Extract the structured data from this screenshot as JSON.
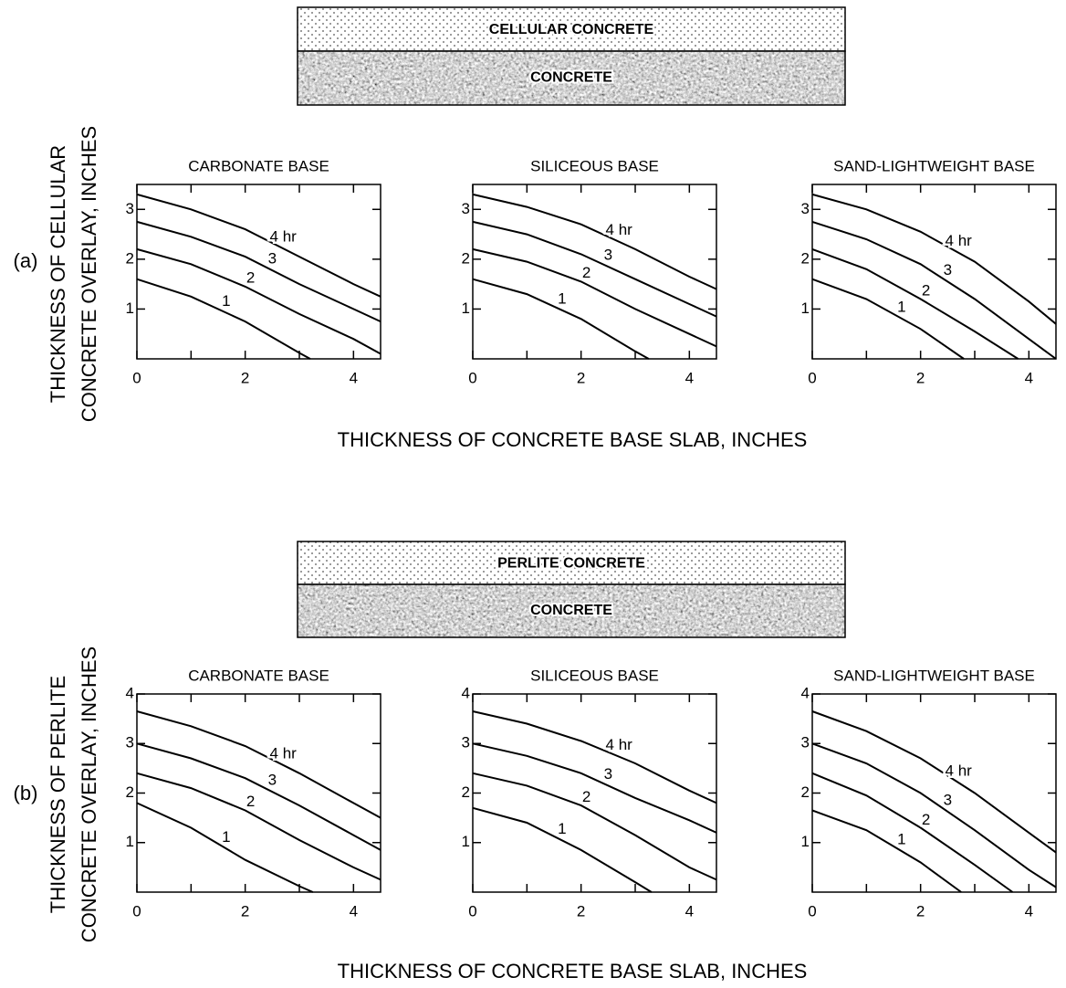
{
  "figure": {
    "panels": [
      {
        "label": "(a)",
        "layer_top": "CELLULAR CONCRETE",
        "layer_bottom": "CONCRETE",
        "ylabel": [
          "THICKNESS OF CELLULAR",
          "CONCRETE OVERLAY, INCHES"
        ],
        "xlabel": "THICKNESS OF CONCRETE BASE SLAB, INCHES"
      },
      {
        "label": "(b)",
        "layer_top": "PERLITE CONCRETE",
        "layer_bottom": "CONCRETE",
        "ylabel": [
          "THICKNESS OF PERLITE",
          "CONCRETE OVERLAY, INCHES"
        ],
        "xlabel": "THICKNESS OF CONCRETE BASE SLAB, INCHES"
      }
    ]
  },
  "chart_data": [
    {
      "type": "line",
      "title": "CARBONATE BASE",
      "xlim": [
        0,
        4.5
      ],
      "ylim": [
        0,
        3.5
      ],
      "xticks": [
        0,
        2,
        4
      ],
      "xminorticks": [
        1,
        3
      ],
      "yticks": [
        1,
        2,
        3
      ],
      "series": [
        {
          "name": "1",
          "color": "#000",
          "x": [
            0,
            1,
            2,
            3,
            3.2
          ],
          "values": [
            1.6,
            1.25,
            0.75,
            0.12,
            0
          ]
        },
        {
          "name": "2",
          "color": "#000",
          "x": [
            0,
            1,
            2,
            3,
            4,
            4.5
          ],
          "values": [
            2.2,
            1.9,
            1.45,
            0.9,
            0.4,
            0.1
          ]
        },
        {
          "name": "3",
          "color": "#000",
          "x": [
            0,
            1,
            2,
            3,
            4,
            4.5
          ],
          "values": [
            2.75,
            2.45,
            2.05,
            1.5,
            1.0,
            0.75
          ]
        },
        {
          "name": "4 hr",
          "color": "#000",
          "x": [
            0,
            1,
            2,
            3,
            4,
            4.5
          ],
          "values": [
            3.3,
            3.0,
            2.6,
            2.05,
            1.5,
            1.25
          ]
        }
      ]
    },
    {
      "type": "line",
      "title": "SILICEOUS BASE",
      "xlim": [
        0,
        4.5
      ],
      "ylim": [
        0,
        3.5
      ],
      "xticks": [
        0,
        2,
        4
      ],
      "xminorticks": [
        1,
        3
      ],
      "yticks": [
        1,
        2,
        3
      ],
      "series": [
        {
          "name": "1",
          "color": "#000",
          "x": [
            0,
            1,
            2,
            3,
            3.25
          ],
          "values": [
            1.6,
            1.3,
            0.8,
            0.15,
            0
          ]
        },
        {
          "name": "2",
          "color": "#000",
          "x": [
            0,
            1,
            2,
            3,
            4,
            4.5
          ],
          "values": [
            2.2,
            1.95,
            1.55,
            1.0,
            0.5,
            0.25
          ]
        },
        {
          "name": "3",
          "color": "#000",
          "x": [
            0,
            1,
            2,
            3,
            4,
            4.5
          ],
          "values": [
            2.75,
            2.5,
            2.1,
            1.6,
            1.1,
            0.85
          ]
        },
        {
          "name": "4 hr",
          "color": "#000",
          "x": [
            0,
            1,
            2,
            3,
            4,
            4.5
          ],
          "values": [
            3.3,
            3.05,
            2.7,
            2.2,
            1.65,
            1.4
          ]
        }
      ]
    },
    {
      "type": "line",
      "title": "SAND-LIGHTWEIGHT BASE",
      "xlim": [
        0,
        4.5
      ],
      "ylim": [
        0,
        3.5
      ],
      "xticks": [
        0,
        2,
        4
      ],
      "xminorticks": [
        1,
        3
      ],
      "yticks": [
        1,
        2,
        3
      ],
      "series": [
        {
          "name": "1",
          "color": "#000",
          "x": [
            0,
            1,
            2,
            2.8
          ],
          "values": [
            1.6,
            1.2,
            0.6,
            0
          ]
        },
        {
          "name": "2",
          "color": "#000",
          "x": [
            0,
            1,
            2,
            3,
            3.8
          ],
          "values": [
            2.2,
            1.8,
            1.2,
            0.55,
            0
          ]
        },
        {
          "name": "3",
          "color": "#000",
          "x": [
            0,
            1,
            2,
            3,
            4,
            4.5
          ],
          "values": [
            2.75,
            2.4,
            1.9,
            1.2,
            0.4,
            0
          ]
        },
        {
          "name": "4 hr",
          "color": "#000",
          "x": [
            0,
            1,
            2,
            3,
            4,
            4.5
          ],
          "values": [
            3.3,
            3.0,
            2.55,
            1.95,
            1.15,
            0.7
          ]
        }
      ]
    },
    {
      "type": "line",
      "title": "CARBONATE BASE",
      "xlim": [
        0,
        4.5
      ],
      "ylim": [
        0,
        4
      ],
      "xticks": [
        0,
        2,
        4
      ],
      "xminorticks": [
        1,
        3
      ],
      "yticks": [
        1,
        2,
        3,
        4
      ],
      "series": [
        {
          "name": "1",
          "color": "#000",
          "x": [
            0,
            1,
            2,
            3,
            3.25
          ],
          "values": [
            1.8,
            1.3,
            0.65,
            0.12,
            0
          ]
        },
        {
          "name": "2",
          "color": "#000",
          "x": [
            0,
            1,
            2,
            3,
            4,
            4.5
          ],
          "values": [
            2.4,
            2.1,
            1.65,
            1.05,
            0.5,
            0.25
          ]
        },
        {
          "name": "3",
          "color": "#000",
          "x": [
            0,
            1,
            2,
            3,
            4,
            4.5
          ],
          "values": [
            3.0,
            2.7,
            2.3,
            1.75,
            1.15,
            0.85
          ]
        },
        {
          "name": "4 hr",
          "color": "#000",
          "x": [
            0,
            1,
            2,
            3,
            4,
            4.5
          ],
          "values": [
            3.65,
            3.35,
            2.95,
            2.4,
            1.8,
            1.5
          ]
        }
      ]
    },
    {
      "type": "line",
      "title": "SILICEOUS BASE",
      "xlim": [
        0,
        4.5
      ],
      "ylim": [
        0,
        4
      ],
      "xticks": [
        0,
        2,
        4
      ],
      "xminorticks": [
        1,
        3
      ],
      "yticks": [
        1,
        2,
        3,
        4
      ],
      "series": [
        {
          "name": "1",
          "color": "#000",
          "x": [
            0,
            1,
            2,
            3,
            3.3
          ],
          "values": [
            1.7,
            1.4,
            0.85,
            0.2,
            0
          ]
        },
        {
          "name": "2",
          "color": "#000",
          "x": [
            0,
            1,
            2,
            3,
            4,
            4.5
          ],
          "values": [
            2.4,
            2.15,
            1.75,
            1.15,
            0.5,
            0.25
          ]
        },
        {
          "name": "3",
          "color": "#000",
          "x": [
            0,
            1,
            2,
            3,
            4,
            4.5
          ],
          "values": [
            3.0,
            2.75,
            2.4,
            1.9,
            1.45,
            1.2
          ]
        },
        {
          "name": "4 hr",
          "color": "#000",
          "x": [
            0,
            1,
            2,
            3,
            4,
            4.5
          ],
          "values": [
            3.65,
            3.4,
            3.05,
            2.6,
            2.05,
            1.8
          ]
        }
      ]
    },
    {
      "type": "line",
      "title": "SAND-LIGHTWEIGHT BASE",
      "xlim": [
        0,
        4.5
      ],
      "ylim": [
        0,
        4
      ],
      "xticks": [
        0,
        2,
        4
      ],
      "xminorticks": [
        1,
        3
      ],
      "yticks": [
        1,
        2,
        3,
        4
      ],
      "series": [
        {
          "name": "1",
          "color": "#000",
          "x": [
            0,
            1,
            2,
            2.75
          ],
          "values": [
            1.65,
            1.25,
            0.6,
            0
          ]
        },
        {
          "name": "2",
          "color": "#000",
          "x": [
            0,
            1,
            2,
            3,
            3.7
          ],
          "values": [
            2.4,
            1.95,
            1.3,
            0.55,
            0
          ]
        },
        {
          "name": "3",
          "color": "#000",
          "x": [
            0,
            1,
            2,
            3,
            4,
            4.5
          ],
          "values": [
            3.0,
            2.6,
            2.0,
            1.25,
            0.45,
            0.1
          ]
        },
        {
          "name": "4 hr",
          "color": "#000",
          "x": [
            0,
            1,
            2,
            3,
            4,
            4.5
          ],
          "values": [
            3.65,
            3.25,
            2.7,
            2.0,
            1.2,
            0.8
          ]
        }
      ]
    }
  ]
}
